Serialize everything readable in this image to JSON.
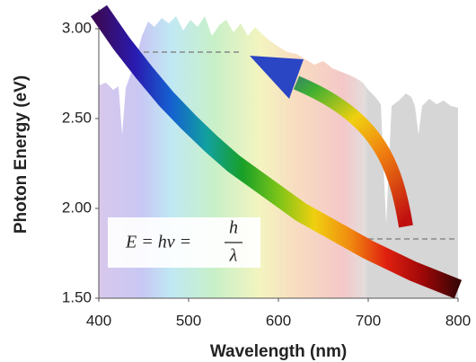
{
  "chart_data": {
    "type": "line",
    "x_label": "Wavelength (nm)",
    "y_label": "Photon Energy (eV)",
    "annotation": {
      "lhs": "E = hν =",
      "numerator": "h",
      "denominator": "λ"
    },
    "x": [
      400,
      425,
      450,
      475,
      500,
      525,
      550,
      575,
      600,
      625,
      650,
      675,
      700,
      725,
      750,
      775,
      800
    ],
    "series": [
      {
        "colors": [
          "#3a0a5a",
          "#2a1ab0",
          "#1560d0",
          "#12a0a0",
          "#18a028",
          "#7cc418",
          "#f0d010",
          "#f08a10",
          "#e02010",
          "#a00808",
          "#3a0505"
        ],
        "values": [
          3.1,
          2.92,
          2.76,
          2.61,
          2.48,
          2.36,
          2.25,
          2.16,
          2.07,
          1.98,
          1.91,
          1.84,
          1.77,
          1.71,
          1.65,
          1.6,
          1.55
        ]
      }
    ],
    "reference_lines": [
      {
        "y": 2.87,
        "x": [
          450,
          560
        ]
      },
      {
        "y": 1.83,
        "x": [
          700,
          800
        ]
      }
    ],
    "xlim": [
      400,
      800
    ],
    "ylim": [
      1.5,
      3.1
    ],
    "xticks": [
      400,
      500,
      600,
      700,
      800
    ],
    "yticks": [
      {
        "value": 3.0,
        "label": "3.00"
      },
      {
        "value": 2.5,
        "label": "2.50"
      },
      {
        "value": 2.0,
        "label": "2.00"
      },
      {
        "value": 1.5,
        "label": "1.50"
      }
    ]
  }
}
